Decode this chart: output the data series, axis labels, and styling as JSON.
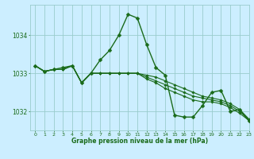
{
  "title": "Graphe pression niveau de la mer (hPa)",
  "background_color": "#cceeff",
  "grid_color": "#99cccc",
  "line_color": "#1a6b1a",
  "marker_color": "#1a6b1a",
  "xlim": [
    -0.5,
    23
  ],
  "ylim": [
    1031.5,
    1034.8
  ],
  "yticks": [
    1032,
    1033,
    1034
  ],
  "xticks": [
    0,
    1,
    2,
    3,
    4,
    5,
    6,
    7,
    8,
    9,
    10,
    11,
    12,
    13,
    14,
    15,
    16,
    17,
    18,
    19,
    20,
    21,
    22,
    23
  ],
  "series": [
    {
      "y": [
        1033.2,
        1033.05,
        1033.1,
        1033.15,
        1033.2,
        1032.75,
        1033.0,
        1033.35,
        1033.6,
        1034.0,
        1034.55,
        1034.45,
        1033.75,
        1033.15,
        1032.95,
        1031.9,
        1031.85,
        1031.85,
        1032.15,
        1032.5,
        1032.55,
        1032.0,
        1032.05,
        1031.75
      ],
      "lw": 1.0,
      "ms": 2.5
    },
    {
      "y": [
        1033.2,
        1033.05,
        1033.1,
        1033.1,
        1033.2,
        1032.75,
        1033.0,
        1033.0,
        1033.0,
        1033.0,
        1033.0,
        1033.0,
        1032.95,
        1032.9,
        1032.8,
        1032.7,
        1032.6,
        1032.5,
        1032.4,
        1032.35,
        1032.3,
        1032.2,
        1032.05,
        1031.8
      ],
      "lw": 0.8,
      "ms": 1.8
    },
    {
      "y": [
        1033.2,
        1033.05,
        1033.1,
        1033.1,
        1033.2,
        1032.75,
        1033.0,
        1033.0,
        1033.0,
        1033.0,
        1033.0,
        1033.0,
        1032.9,
        1032.8,
        1032.7,
        1032.6,
        1032.5,
        1032.4,
        1032.35,
        1032.3,
        1032.25,
        1032.15,
        1032.0,
        1031.78
      ],
      "lw": 0.8,
      "ms": 1.8
    },
    {
      "y": [
        1033.2,
        1033.05,
        1033.1,
        1033.1,
        1033.2,
        1032.75,
        1033.0,
        1033.0,
        1033.0,
        1033.0,
        1033.0,
        1033.0,
        1032.85,
        1032.75,
        1032.6,
        1032.5,
        1032.4,
        1032.3,
        1032.25,
        1032.25,
        1032.2,
        1032.1,
        1031.95,
        1031.76
      ],
      "lw": 0.8,
      "ms": 1.8
    }
  ]
}
